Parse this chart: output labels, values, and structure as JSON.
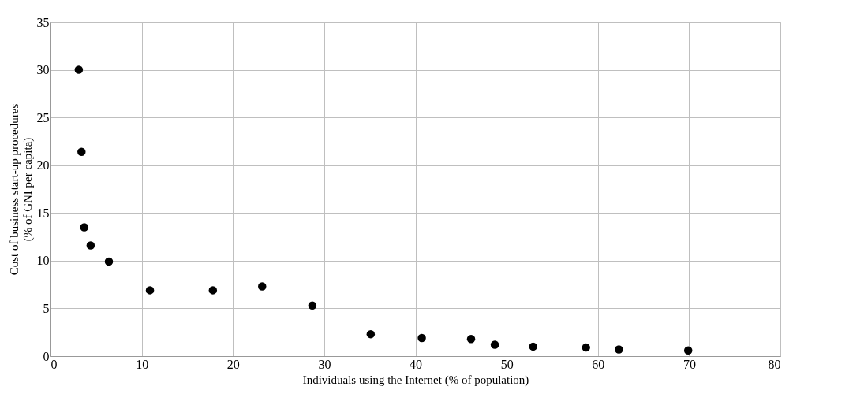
{
  "chart_data": {
    "type": "scatter",
    "xlabel": "Individuals using the Internet (% of population)",
    "ylabel": "Cost of business start-up procedures\n(% of GNI per capita)",
    "series": [
      {
        "color": "#000000",
        "x": [
          3.1,
          3.4,
          3.7,
          4.4,
          6.4,
          10.9,
          17.8,
          23.2,
          28.7,
          35.1,
          40.7,
          46.1,
          48.7,
          52.9,
          58.7,
          62.3,
          69.9
        ],
        "values": [
          30.0,
          21.4,
          13.5,
          11.6,
          9.9,
          6.9,
          6.9,
          7.3,
          5.3,
          2.3,
          1.9,
          1.8,
          1.2,
          1.0,
          0.9,
          0.7,
          0.6
        ]
      }
    ],
    "xlim": [
      0,
      80
    ],
    "xticks": [
      0,
      10,
      20,
      30,
      40,
      50,
      60,
      70,
      80
    ],
    "ylim": [
      0,
      35
    ],
    "yticks": [
      0,
      5,
      10,
      15,
      20,
      25,
      30,
      35
    ],
    "grid": true,
    "marker": "circle"
  }
}
